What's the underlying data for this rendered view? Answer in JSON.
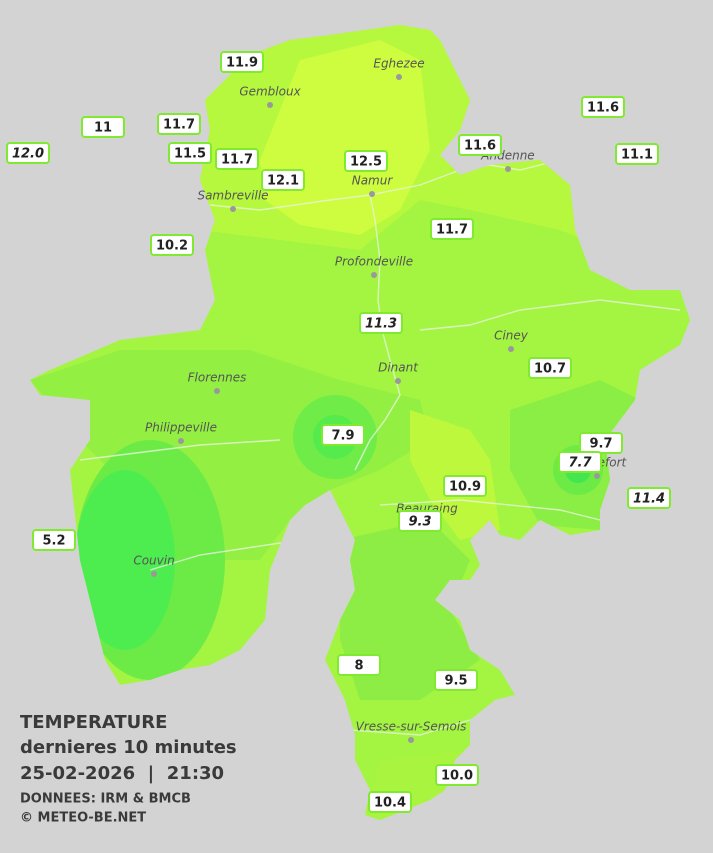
{
  "cities": [
    "Eghezee",
    "Gembloux",
    "Andenne",
    "Namur",
    "Sambreville",
    "Profondeville",
    "Ciney",
    "Dinant",
    "Florennes",
    "Philippeville",
    "Rochefort",
    "Beauraing",
    "Couvin",
    "Vresse-sur-Semois"
  ],
  "stations": [
    {
      "reading": 11.9
    },
    {
      "reading": 11.0
    },
    {
      "reading": 11.7
    },
    {
      "reading": {
        "value": 12,
        "label": "12.0"
      }
    },
    {
      "reading": 11.5
    },
    {
      "reading": 11.7
    },
    {
      "reading": 12.1
    },
    {
      "reading": 12.5
    },
    {
      "reading": 11.6
    },
    {
      "reading": 11.6
    },
    {
      "reading": 11.1
    },
    {
      "reading": 10.2
    },
    {
      "reading": 11.7
    },
    {
      "reading": 11.3
    },
    {
      "reading": 10.7
    },
    {
      "reading": 7.9
    },
    {
      "reading": 9.7
    },
    {
      "reading": 7.7
    },
    {
      "reading": 10.9
    },
    {
      "reading": 11.4
    },
    {
      "reading": 9.3
    },
    {
      "reading": 5.2
    },
    {
      "reading": 8.0
    },
    {
      "reading": 9.5
    },
    {
      "reading": {
        "value": 10,
        "label": "10.0"
      }
    },
    {
      "reading": 10.4
    }
  ],
  "footer": {
    "title": "TEMPERATURE",
    "subtitle": "dernieres 10 minutes",
    "datetime": "25-02-2026  |  21:30",
    "source": "DONNEES: IRM & BMCB",
    "copyright": "© METEO-BE.NET"
  }
}
